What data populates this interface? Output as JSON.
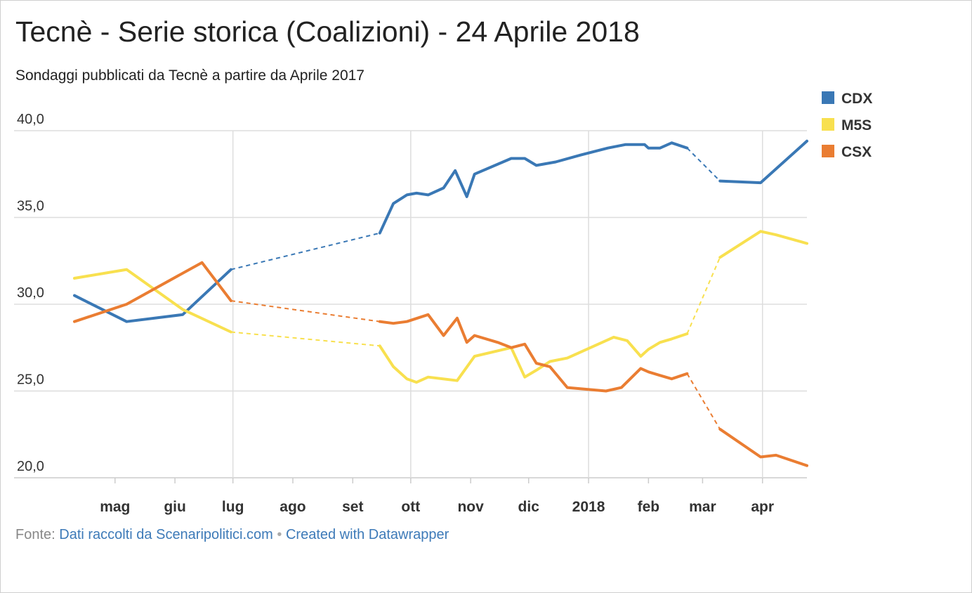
{
  "title": "Tecnè - Serie storica (Coalizioni) - 24 Aprile 2018",
  "subtitle": "Sondaggi pubblicati da Tecnè a partire da Aprile 2017",
  "footer": {
    "source_label": "Fonte:",
    "source_link": "Dati raccolti da Scenaripolitici.com",
    "separator": "•",
    "credit_link": "Created with Datawrapper"
  },
  "chart_data": {
    "type": "line",
    "ylim": [
      20,
      40
    ],
    "yticks": [
      20,
      25,
      30,
      35,
      40
    ],
    "ytick_labels": [
      "20,0",
      "25,0",
      "30,0",
      "35,0",
      "40,0"
    ],
    "xlim": [
      "2017-04-10",
      "2018-04-24"
    ],
    "month_ticks": [
      {
        "label": "mag",
        "date": "2017-05-01",
        "gridline": false
      },
      {
        "label": "giu",
        "date": "2017-06-01",
        "gridline": false
      },
      {
        "label": "lug",
        "date": "2017-07-01",
        "gridline": true
      },
      {
        "label": "ago",
        "date": "2017-08-01",
        "gridline": false
      },
      {
        "label": "set",
        "date": "2017-09-01",
        "gridline": false
      },
      {
        "label": "ott",
        "date": "2017-10-01",
        "gridline": true
      },
      {
        "label": "nov",
        "date": "2017-11-01",
        "gridline": false
      },
      {
        "label": "dic",
        "date": "2017-12-01",
        "gridline": false
      },
      {
        "label": "2018",
        "date": "2018-01-01",
        "gridline": true
      },
      {
        "label": "feb",
        "date": "2018-02-01",
        "gridline": false
      },
      {
        "label": "mar",
        "date": "2018-03-01",
        "gridline": false
      },
      {
        "label": "apr",
        "date": "2018-04-01",
        "gridline": true
      }
    ],
    "legend_position": "top-right",
    "series": [
      {
        "name": "CDX",
        "color": "#3a78b5",
        "points": [
          [
            "2017-04-10",
            30.5
          ],
          [
            "2017-05-07",
            29.0
          ],
          [
            "2017-06-05",
            29.4
          ],
          [
            "2017-06-30",
            32.0
          ],
          [
            "2017-09-15",
            34.1
          ],
          [
            "2017-09-22",
            35.8
          ],
          [
            "2017-09-29",
            36.3
          ],
          [
            "2017-10-04",
            36.4
          ],
          [
            "2017-10-10",
            36.3
          ],
          [
            "2017-10-18",
            36.7
          ],
          [
            "2017-10-24",
            37.7
          ],
          [
            "2017-10-30",
            36.2
          ],
          [
            "2017-11-03",
            37.5
          ],
          [
            "2017-11-22",
            38.4
          ],
          [
            "2017-11-29",
            38.4
          ],
          [
            "2017-12-05",
            38.0
          ],
          [
            "2017-12-15",
            38.2
          ],
          [
            "2017-12-28",
            38.6
          ],
          [
            "2018-01-11",
            39.0
          ],
          [
            "2018-01-20",
            39.2
          ],
          [
            "2018-01-30",
            39.2
          ],
          [
            "2018-02-01",
            39.0
          ],
          [
            "2018-02-07",
            39.0
          ],
          [
            "2018-02-13",
            39.3
          ],
          [
            "2018-02-21",
            39.0
          ],
          [
            "2018-03-10",
            37.1
          ],
          [
            "2018-03-31",
            37.0
          ],
          [
            "2018-04-24",
            39.4
          ]
        ],
        "dashed_segments": [
          [
            3,
            4
          ],
          [
            24,
            25
          ]
        ]
      },
      {
        "name": "M5S",
        "color": "#f8e04f",
        "points": [
          [
            "2017-04-10",
            31.5
          ],
          [
            "2017-05-07",
            32.0
          ],
          [
            "2017-06-05",
            29.7
          ],
          [
            "2017-06-30",
            28.4
          ],
          [
            "2017-09-15",
            27.6
          ],
          [
            "2017-09-22",
            26.4
          ],
          [
            "2017-09-29",
            25.7
          ],
          [
            "2017-10-04",
            25.5
          ],
          [
            "2017-10-10",
            25.8
          ],
          [
            "2017-10-25",
            25.6
          ],
          [
            "2017-11-03",
            27.0
          ],
          [
            "2017-11-22",
            27.5
          ],
          [
            "2017-11-29",
            25.8
          ],
          [
            "2017-12-05",
            26.2
          ],
          [
            "2017-12-12",
            26.7
          ],
          [
            "2017-12-21",
            26.9
          ],
          [
            "2018-01-14",
            28.1
          ],
          [
            "2018-01-21",
            27.9
          ],
          [
            "2018-01-28",
            27.0
          ],
          [
            "2018-02-01",
            27.4
          ],
          [
            "2018-02-07",
            27.8
          ],
          [
            "2018-02-13",
            28.0
          ],
          [
            "2018-02-21",
            28.3
          ],
          [
            "2018-03-10",
            32.7
          ],
          [
            "2018-03-31",
            34.2
          ],
          [
            "2018-04-08",
            34.0
          ],
          [
            "2018-04-24",
            33.5
          ]
        ],
        "dashed_segments": [
          [
            3,
            4
          ],
          [
            22,
            23
          ]
        ]
      },
      {
        "name": "CSX",
        "color": "#ea7d32",
        "points": [
          [
            "2017-04-10",
            29.0
          ],
          [
            "2017-05-07",
            30.0
          ],
          [
            "2017-06-15",
            32.4
          ],
          [
            "2017-06-30",
            30.2
          ],
          [
            "2017-09-15",
            29.0
          ],
          [
            "2017-09-22",
            28.9
          ],
          [
            "2017-09-29",
            29.0
          ],
          [
            "2017-10-10",
            29.4
          ],
          [
            "2017-10-18",
            28.2
          ],
          [
            "2017-10-25",
            29.2
          ],
          [
            "2017-10-30",
            27.8
          ],
          [
            "2017-11-03",
            28.2
          ],
          [
            "2017-11-15",
            27.8
          ],
          [
            "2017-11-22",
            27.5
          ],
          [
            "2017-11-29",
            27.7
          ],
          [
            "2017-12-05",
            26.6
          ],
          [
            "2017-12-12",
            26.4
          ],
          [
            "2017-12-21",
            25.2
          ],
          [
            "2018-01-10",
            25.0
          ],
          [
            "2018-01-18",
            25.2
          ],
          [
            "2018-01-28",
            26.3
          ],
          [
            "2018-02-01",
            26.1
          ],
          [
            "2018-02-07",
            25.9
          ],
          [
            "2018-02-13",
            25.7
          ],
          [
            "2018-02-21",
            26.0
          ],
          [
            "2018-03-10",
            22.8
          ],
          [
            "2018-03-31",
            21.2
          ],
          [
            "2018-04-08",
            21.3
          ],
          [
            "2018-04-24",
            20.7
          ]
        ],
        "dashed_segments": [
          [
            3,
            4
          ],
          [
            24,
            25
          ]
        ]
      }
    ]
  }
}
